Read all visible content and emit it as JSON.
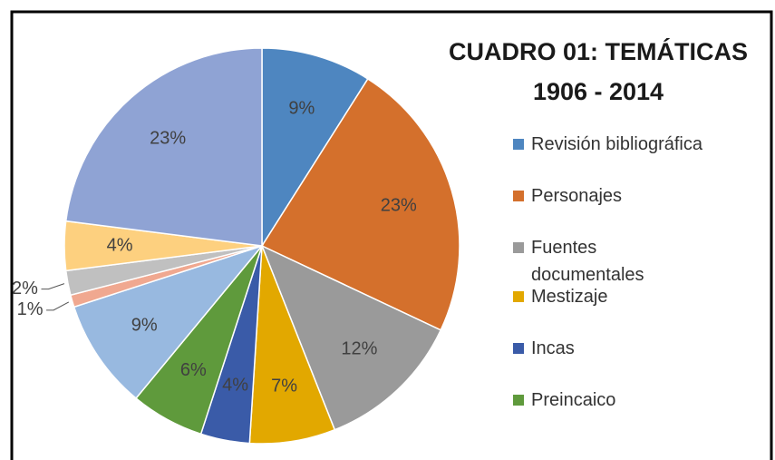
{
  "chart_data": {
    "type": "pie",
    "title": "CUADRO 01: TEMÁTICAS",
    "subtitle": "1906 - 2014",
    "categories": [
      "Revisión bibliográfica",
      "Personajes",
      "Fuentes documentales",
      "Mestizaje",
      "Incas",
      "Preincaico",
      null,
      null,
      null,
      null,
      null
    ],
    "values": [
      9,
      23,
      12,
      7,
      4,
      6,
      9,
      1,
      2,
      4,
      23
    ],
    "value_labels": [
      "9%",
      "23%",
      "12%",
      "7%",
      "4%",
      "6%",
      "9%",
      "1%",
      "2%",
      "4%",
      "23%"
    ],
    "colors": [
      "#4e86c0",
      "#d4702c",
      "#9a9a9a",
      "#e2a800",
      "#3a5ba8",
      "#5f9a3c",
      "#98b9e0",
      "#f0a890",
      "#c0c0c0",
      "#fdd07f",
      "#8fa3d4"
    ]
  }
}
